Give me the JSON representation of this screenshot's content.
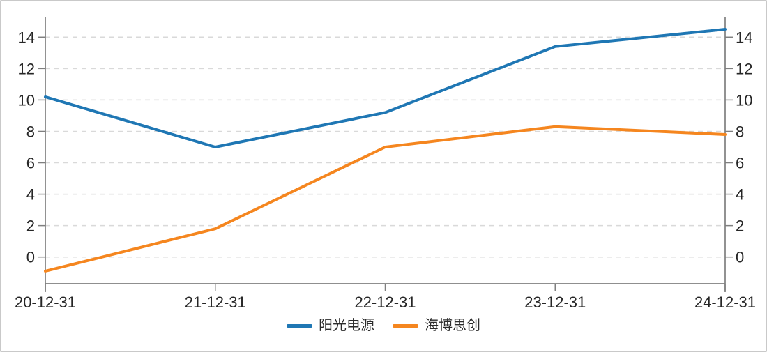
{
  "chart_data": {
    "type": "line",
    "title": "",
    "xlabel": "",
    "ylabel": "",
    "categories": [
      "20-12-31",
      "21-12-31",
      "22-12-31",
      "23-12-31",
      "24-12-31"
    ],
    "series": [
      {
        "name": "阳光电源",
        "color": "#1f77b4",
        "values": [
          10.2,
          7.0,
          9.2,
          13.4,
          14.5
        ]
      },
      {
        "name": "海博思创",
        "color": "#f5861f",
        "values": [
          -0.9,
          1.8,
          7.0,
          8.3,
          7.8
        ]
      }
    ],
    "y_ticks": [
      0,
      2,
      4,
      6,
      8,
      10,
      12,
      14
    ],
    "ylim": [
      -1.7,
      15.3
    ],
    "y_axis_sides": "both",
    "grid": "horizontal-dashed",
    "grid_color": "#d9d9d9",
    "axis_color": "#7f7f7f",
    "tick_label_color": "#262626",
    "legend_position": "bottom",
    "line_width": 4
  },
  "frame": {
    "background": "#ffffff",
    "border_color": "#c9c9c9"
  }
}
